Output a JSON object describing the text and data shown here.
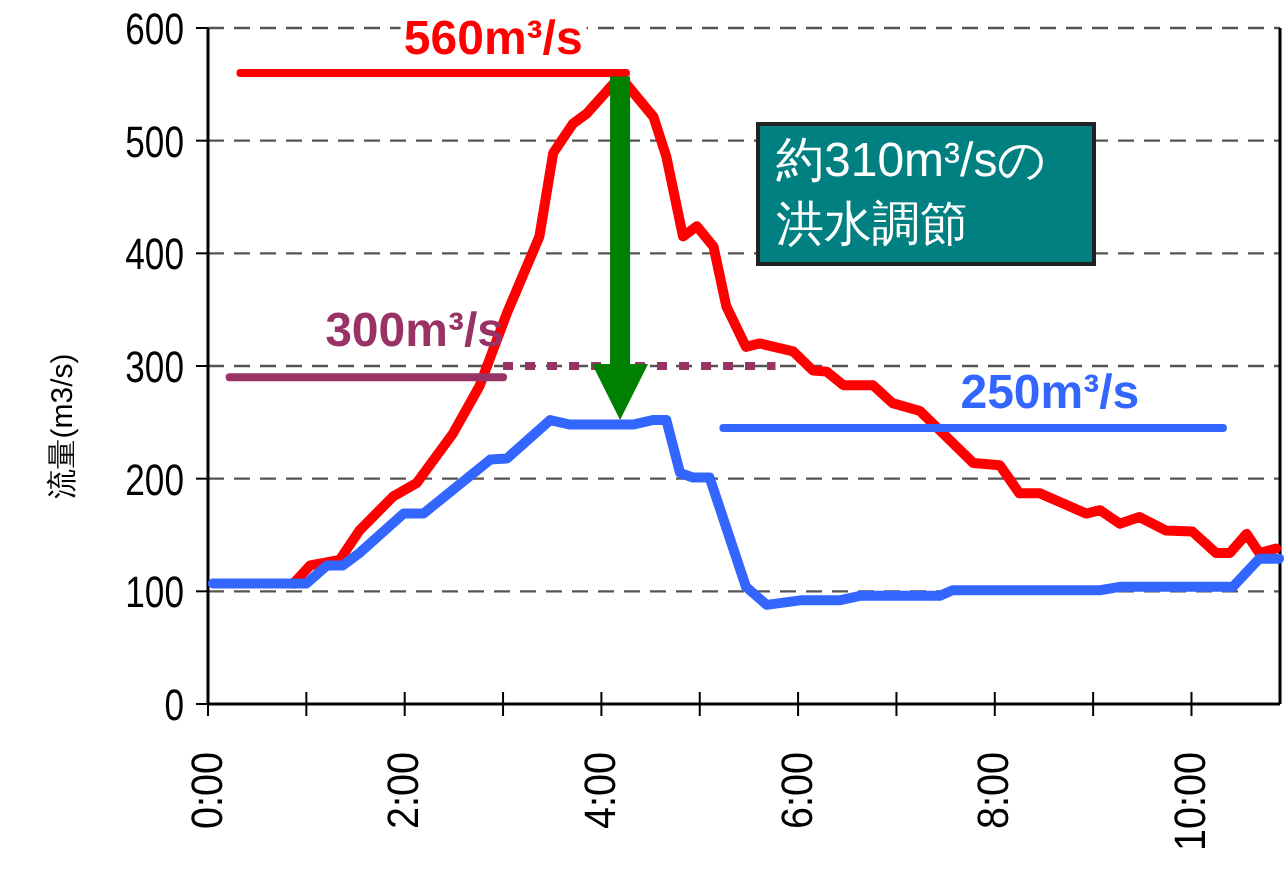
{
  "chart_data": {
    "type": "line",
    "ylabel": "流量(m3/s)",
    "xlim": [
      0,
      10.9
    ],
    "ylim": [
      0,
      600
    ],
    "xticks": [
      {
        "value": 0,
        "label": "0:00"
      },
      {
        "value": 1,
        "label": null
      },
      {
        "value": 2,
        "label": "2:00"
      },
      {
        "value": 3,
        "label": null
      },
      {
        "value": 4,
        "label": "4:00"
      },
      {
        "value": 5,
        "label": null
      },
      {
        "value": 6,
        "label": "6:00"
      },
      {
        "value": 7,
        "label": null
      },
      {
        "value": 8,
        "label": "8:00"
      },
      {
        "value": 9,
        "label": null
      },
      {
        "value": 10,
        "label": "10:00"
      }
    ],
    "yticks": [
      0,
      100,
      200,
      300,
      400,
      500,
      600
    ],
    "grid": "y",
    "marker": "none",
    "line_style": "solid",
    "series": [
      {
        "color": "#ff0000",
        "x": [
          0.87,
          1.04,
          1.34,
          1.54,
          1.88,
          2.12,
          2.49,
          2.76,
          3.04,
          3.37,
          3.51,
          3.71,
          3.85,
          4.19,
          4.53,
          4.66,
          4.83,
          4.97,
          5.14,
          5.27,
          5.47,
          5.61,
          5.95,
          6.15,
          6.29,
          6.46,
          6.76,
          6.96,
          7.24,
          7.44,
          7.78,
          8.05,
          8.25,
          8.46,
          8.93,
          9.07,
          9.27,
          9.47,
          9.74,
          10.01,
          10.25,
          10.39,
          10.56,
          10.69,
          10.86
        ],
        "values": [
          107,
          123,
          128,
          154,
          184,
          196,
          240,
          282,
          347,
          415,
          489,
          515,
          524,
          557,
          521,
          486,
          415,
          424,
          406,
          353,
          317,
          320,
          313,
          296,
          295,
          283,
          283,
          267,
          260,
          243,
          214,
          212,
          187,
          187,
          169,
          172,
          160,
          166,
          154,
          153,
          134,
          134,
          151,
          134,
          138
        ]
      },
      {
        "color": "#3366ff",
        "x": [
          0.05,
          1.0,
          1.21,
          1.37,
          1.54,
          1.99,
          2.19,
          2.87,
          3.04,
          3.48,
          3.68,
          4.32,
          4.52,
          4.66,
          4.8,
          4.93,
          5.1,
          5.47,
          5.68,
          6.02,
          6.42,
          6.63,
          7.44,
          7.57,
          9.07,
          9.27,
          10.42,
          10.69,
          10.89
        ],
        "values": [
          107,
          107,
          123,
          123,
          134,
          169,
          169,
          217,
          218,
          252,
          248,
          248,
          252,
          252,
          205,
          201,
          201,
          104,
          88,
          92,
          92,
          96,
          96,
          101,
          101,
          104,
          104,
          129,
          129
        ]
      },
      {
        "color": "#ff0000",
        "x": [
          0.33,
          4.25
        ],
        "values": [
          560,
          560
        ]
      },
      {
        "color": "#993366",
        "x": [
          0.22,
          3.0
        ],
        "values": [
          290,
          290
        ]
      },
      {
        "color": "#993366",
        "x": [
          3.0,
          5.77
        ],
        "values": [
          300,
          300
        ],
        "line_style": "dotted"
      },
      {
        "color": "#3366ff",
        "x": [
          5.24,
          10.32
        ],
        "values": [
          245,
          245
        ]
      }
    ],
    "annotations": [
      {
        "text": "560m³/s",
        "x": 2.9,
        "y": 560
      },
      {
        "text": "300m³/s",
        "x": 2.1,
        "y": 300
      },
      {
        "text": "250m³/s",
        "x": 8.56,
        "y": 245
      },
      "約310m³/sの洪水調節"
    ]
  }
}
